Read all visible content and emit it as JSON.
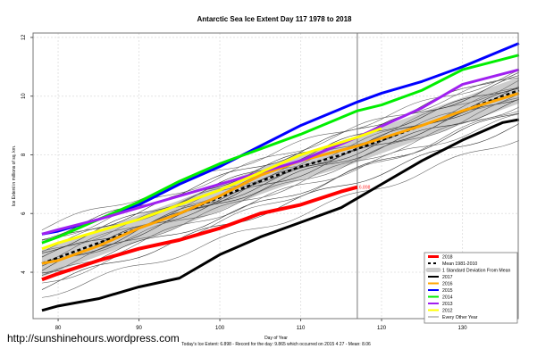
{
  "chart_data": {
    "type": "line",
    "title": "Antarctic Sea Ice Extent Day 117 1978 to 2018",
    "xlabel": "Day of Year",
    "ylabel": "Ice Extent in millions of sq. km.",
    "xlim": [
      76.9,
      136.9
    ],
    "ylim": [
      2.42,
      12.15
    ],
    "xticks": [
      80,
      90,
      100,
      110,
      120,
      130
    ],
    "yticks": [
      4,
      6,
      8,
      10,
      12
    ],
    "grid": true,
    "current_day": 117,
    "current_value_label": "6.898",
    "legend_position": "bottom-right",
    "footer": "Today's Ice Extent: 6.898  - Record for the day: 9.865 which occurred on 2015 4 27  - Mean: 8.06",
    "std_band": {
      "name": "1 Standard Deviation From Mean",
      "color": "#cccccc",
      "halfwidth": 0.45
    },
    "mean": {
      "name": "Mean 1981-2010",
      "color": "#000000",
      "x": [
        78,
        85,
        90,
        95,
        100,
        105,
        110,
        115,
        120,
        125,
        130,
        137
      ],
      "y": [
        4.3,
        5.0,
        5.5,
        6.0,
        6.55,
        7.1,
        7.6,
        8.0,
        8.5,
        9.0,
        9.5,
        10.2
      ]
    },
    "series": [
      {
        "name": "2018",
        "color": "#ff0000",
        "width": 4,
        "x": [
          78,
          80,
          85,
          90,
          95,
          100,
          105,
          110,
          115,
          117
        ],
        "y": [
          3.75,
          3.95,
          4.4,
          4.8,
          5.1,
          5.5,
          6.0,
          6.3,
          6.75,
          6.9
        ]
      },
      {
        "name": "2017",
        "color": "#000000",
        "width": 3,
        "x": [
          78,
          80,
          85,
          90,
          95,
          100,
          105,
          110,
          115,
          120,
          125,
          130,
          135,
          137
        ],
        "y": [
          2.7,
          2.85,
          3.1,
          3.5,
          3.8,
          4.6,
          5.2,
          5.7,
          6.2,
          7.0,
          7.8,
          8.5,
          9.1,
          9.2
        ]
      },
      {
        "name": "2016",
        "color": "#ffa500",
        "width": 3,
        "x": [
          78,
          80,
          85,
          90,
          95,
          100,
          105,
          110,
          117,
          125,
          130,
          137
        ],
        "y": [
          4.3,
          4.4,
          4.9,
          5.5,
          6.0,
          6.6,
          7.3,
          7.8,
          8.3,
          9.0,
          9.5,
          10.1
        ]
      },
      {
        "name": "2015",
        "color": "#0000ff",
        "width": 3,
        "x": [
          78,
          80,
          85,
          90,
          95,
          100,
          105,
          110,
          117,
          120,
          125,
          130,
          137
        ],
        "y": [
          5.3,
          5.4,
          5.8,
          6.3,
          7.0,
          7.6,
          8.3,
          9.0,
          9.8,
          10.1,
          10.5,
          11.0,
          11.8
        ]
      },
      {
        "name": "2014",
        "color": "#00ee00",
        "width": 3,
        "x": [
          78,
          80,
          85,
          90,
          95,
          100,
          105,
          110,
          117,
          120,
          125,
          130,
          137
        ],
        "y": [
          5.0,
          5.2,
          5.8,
          6.4,
          7.1,
          7.7,
          8.2,
          8.7,
          9.5,
          9.7,
          10.2,
          10.9,
          11.4
        ]
      },
      {
        "name": "2013",
        "color": "#a020f0",
        "width": 3,
        "x": [
          78,
          80,
          85,
          90,
          95,
          100,
          105,
          110,
          117,
          125,
          130,
          137
        ],
        "y": [
          5.3,
          5.45,
          5.8,
          6.2,
          6.6,
          7.0,
          7.4,
          7.8,
          8.6,
          9.6,
          10.4,
          10.9
        ]
      },
      {
        "name": "2012",
        "color": "#ffff00",
        "width": 3,
        "x": [
          78,
          80,
          85,
          90,
          95,
          100,
          105,
          110,
          117,
          120
        ],
        "y": [
          4.8,
          5.0,
          5.4,
          5.8,
          6.3,
          6.8,
          7.4,
          8.0,
          8.6,
          8.9
        ]
      }
    ],
    "other_years": {
      "name": "Every Other Year",
      "color": "#555555",
      "x": [
        78,
        137
      ],
      "lines": [
        [
          3.2,
          8.6
        ],
        [
          3.5,
          9.0
        ],
        [
          3.8,
          9.3
        ],
        [
          3.9,
          9.5
        ],
        [
          4.0,
          9.7
        ],
        [
          4.1,
          9.8
        ],
        [
          4.2,
          9.9
        ],
        [
          4.3,
          10.0
        ],
        [
          4.4,
          10.1
        ],
        [
          4.5,
          10.2
        ],
        [
          4.6,
          10.3
        ],
        [
          4.7,
          10.4
        ],
        [
          4.8,
          10.5
        ],
        [
          4.9,
          10.6
        ],
        [
          5.0,
          10.7
        ],
        [
          5.2,
          10.9
        ],
        [
          5.5,
          10.8
        ],
        [
          4.1,
          10.2
        ],
        [
          3.6,
          9.6
        ]
      ]
    },
    "legend": [
      "2018",
      "Mean 1981-2010",
      "1 Standard Deviation From Mean",
      "2017",
      "2016",
      "2015",
      "2014",
      "2013",
      "2012",
      "Every Other Year"
    ]
  },
  "watermark_url": "http://sunshinehours.wordpress.com"
}
